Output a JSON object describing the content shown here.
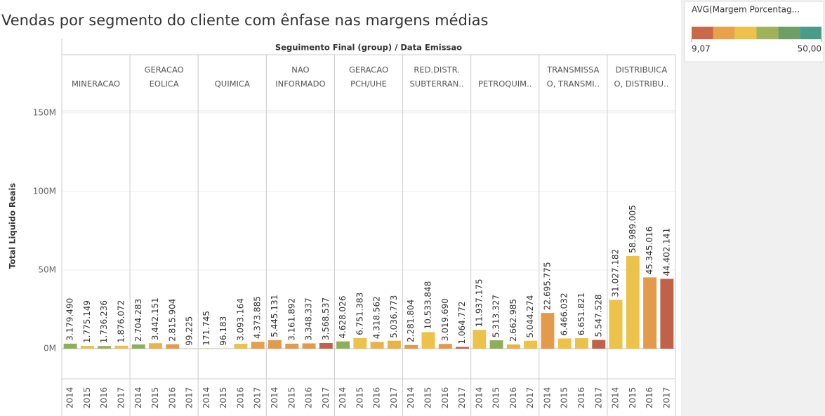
{
  "chart_data": {
    "type": "bar",
    "title": "Vendas por segmento do cliente com ênfase nas margens médias",
    "header": "Seguimento Final (group) / Data Emissao",
    "y_label": "Total Liquido Reais",
    "ylim": [
      -19200000,
      151300000
    ],
    "yticks": [
      {
        "value": 0,
        "label": "0M"
      },
      {
        "value": 50000000,
        "label": "50M"
      },
      {
        "value": 100000000,
        "label": "100M"
      },
      {
        "value": 150000000,
        "label": "150M"
      }
    ],
    "grid": true,
    "legend": {
      "title": "AVG(Margem Porcentag...",
      "colors": [
        "#c8694a",
        "#e8a24a",
        "#eec24a",
        "#9fb35a",
        "#6e9e63",
        "#4a9b87"
      ],
      "min": {
        "value": 9.07,
        "label": "9,07"
      },
      "max": {
        "value": 50,
        "label": "50,00"
      }
    },
    "panels": [
      {
        "name": [
          "MINERACAO"
        ],
        "years": [
          "2014",
          "2015",
          "2016",
          "2017"
        ],
        "values": [
          3179490,
          1775149,
          1736236,
          1876072
        ],
        "value_labels": [
          "3.179.490",
          "1.775.149",
          "1.736.236",
          "1.876.072"
        ],
        "colors": [
          "#8fae5a",
          "#ecc24a",
          "#9fb35a",
          "#ecc24a"
        ]
      },
      {
        "name": [
          "GERACAO",
          "EOLICA"
        ],
        "years": [
          "2014",
          "2015",
          "2016",
          "2017"
        ],
        "values": [
          2704283,
          3442151,
          2815904,
          99225
        ],
        "value_labels": [
          "2.704.283",
          "3.442.151",
          "2.815.904",
          "99.225"
        ],
        "colors": [
          "#8fae5a",
          "#e9b24a",
          "#e39a4a",
          "#e9b24a"
        ]
      },
      {
        "name": [
          "QUIMICA"
        ],
        "years": [
          "2014",
          "2015",
          "2016",
          "2017"
        ],
        "values": [
          171745,
          96183,
          3093164,
          4373885
        ],
        "value_labels": [
          "171.745",
          "96.183",
          "3.093.164",
          "4.373.885"
        ],
        "colors": [
          "#e9b24a",
          "#ecc24a",
          "#ecc24a",
          "#e4a04a"
        ]
      },
      {
        "name": [
          "NAO",
          "INFORMADO"
        ],
        "years": [
          "2014",
          "2015",
          "2016",
          "2017"
        ],
        "values": [
          5445131,
          3161892,
          3348337,
          3568537
        ],
        "value_labels": [
          "5.445.131",
          "3.161.892",
          "3.348.337",
          "3.568.537"
        ],
        "colors": [
          "#e39a4a",
          "#e39a4a",
          "#e39a4a",
          "#c0624a"
        ]
      },
      {
        "name": [
          "GERACAO",
          "PCH/UHE"
        ],
        "years": [
          "2014",
          "2015",
          "2016",
          "2017"
        ],
        "values": [
          4628026,
          6751383,
          4318562,
          5036773
        ],
        "value_labels": [
          "4.628.026",
          "6.751.383",
          "4.318.562",
          "5.036.773"
        ],
        "colors": [
          "#8fae5a",
          "#ecc24a",
          "#e9b24a",
          "#e9b24a"
        ]
      },
      {
        "name": [
          "RED.DISTR.",
          "SUBTERRAN.."
        ],
        "years": [
          "2014",
          "2015",
          "2016",
          "2017"
        ],
        "values": [
          2281804,
          10533848,
          3019690,
          1064772
        ],
        "value_labels": [
          "2.281.804",
          "10.533.848",
          "3.019.690",
          "1.064.772"
        ],
        "colors": [
          "#e39a4a",
          "#ecc24a",
          "#e39a4a",
          "#c0624a"
        ]
      },
      {
        "name": [
          "PETROQUIM.."
        ],
        "years": [
          "2014",
          "2015",
          "2016",
          "2017"
        ],
        "values": [
          11937175,
          5313327,
          2662985,
          5044274
        ],
        "value_labels": [
          "11.937.175",
          "5.313.327",
          "2.662.985",
          "5.044.274"
        ],
        "colors": [
          "#ecc24a",
          "#8fae5a",
          "#e9b24a",
          "#ecc24a"
        ]
      },
      {
        "name": [
          "TRANSMISSA",
          "O, TRANSMI.."
        ],
        "years": [
          "2014",
          "2015",
          "2016",
          "2017"
        ],
        "values": [
          22695775,
          6466032,
          6651821,
          5547528
        ],
        "value_labels": [
          "22.695.775",
          "6.466.032",
          "6.651.821",
          "5.547.528"
        ],
        "colors": [
          "#e39a4a",
          "#ecc24a",
          "#ecc24a",
          "#c0624a"
        ]
      },
      {
        "name": [
          "DISTRIBUICA",
          "O, DISTRIBU.."
        ],
        "years": [
          "2014",
          "2015",
          "2016",
          "2017"
        ],
        "values": [
          31027182,
          58989005,
          45345016,
          44402141
        ],
        "value_labels": [
          "31.027.182",
          "58.989.005",
          "45.345.016",
          "44.402.141"
        ],
        "colors": [
          "#ecc24a",
          "#ecc24a",
          "#e39a4a",
          "#c0624a"
        ]
      }
    ]
  }
}
